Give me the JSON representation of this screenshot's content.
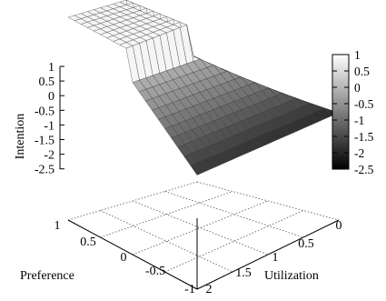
{
  "chart_data": {
    "type": "surface",
    "title": "",
    "xlabel": "Preference",
    "ylabel": "Utilization",
    "zlabel": "Intention",
    "x_ticks": [
      "1",
      "0.5",
      "0",
      "-0.5",
      "-1"
    ],
    "y_ticks": [
      "0",
      "0.5",
      "1",
      "1.5",
      "2"
    ],
    "z_ticks": [
      "1",
      "0.5",
      "0",
      "-0.5",
      "-1",
      "-1.5",
      "-2",
      "-2.5"
    ],
    "xlim": [
      -1,
      1
    ],
    "ylim": [
      0,
      2
    ],
    "zlim": [
      -2.5,
      1
    ],
    "colorbar": {
      "range": [
        -2.5,
        1
      ],
      "ticks": [
        "1",
        "0.5",
        "0",
        "-0.5",
        "-1",
        "-1.5",
        "-2",
        "-2.5"
      ],
      "colormap": "grayscale"
    },
    "surface": {
      "grid_size": 20,
      "approx_values": [
        {
          "preference": 1,
          "utilization": 0,
          "intention": 1
        },
        {
          "preference": 0.5,
          "utilization": 0.5,
          "intention": 1
        },
        {
          "preference": -1,
          "utilization": 0,
          "intention": -0.5
        },
        {
          "preference": 1,
          "utilization": 2,
          "intention": -0.5
        },
        {
          "preference": -1,
          "utilization": 2,
          "intention": -2.5
        }
      ]
    },
    "grid": true,
    "legend": "none"
  }
}
